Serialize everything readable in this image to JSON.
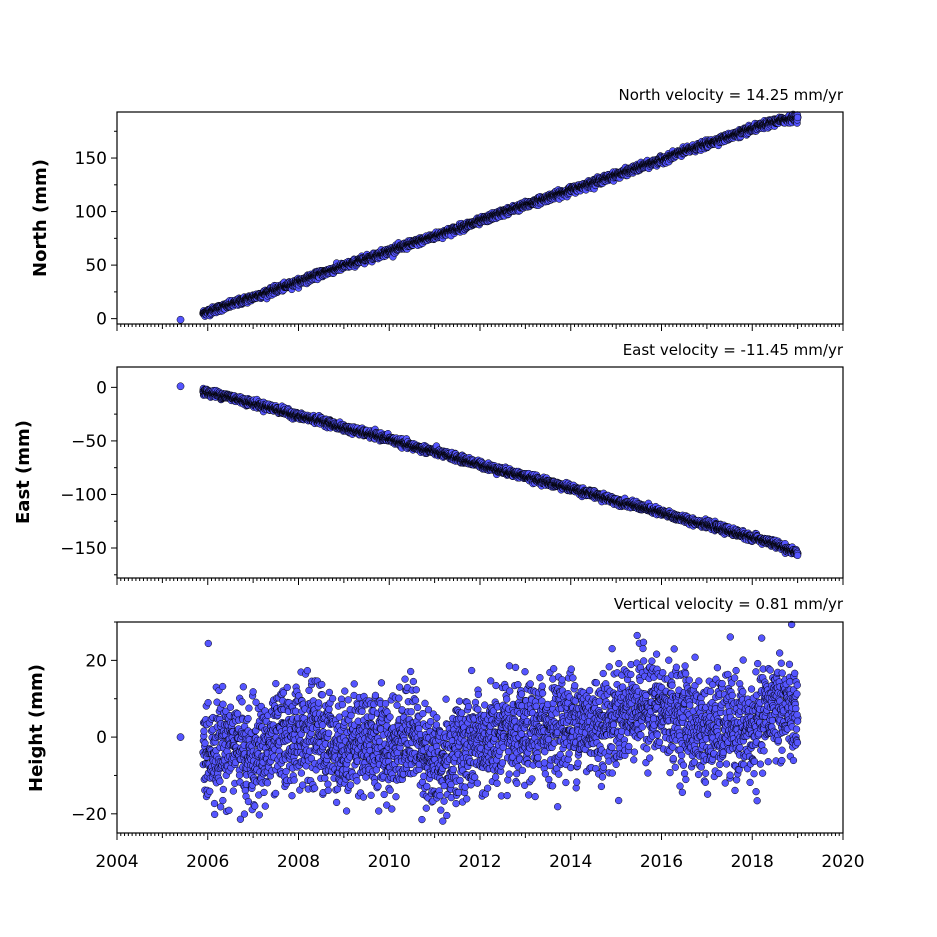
{
  "chart_data": [
    {
      "type": "scatter",
      "title": "North velocity = 14.25 mm/yr",
      "ylabel": "North (mm)",
      "xlim": [
        2004,
        2020
      ],
      "ylim": [
        -5,
        193
      ],
      "yticks": [
        0,
        50,
        100,
        150
      ],
      "ytick_labels": [
        "0",
        "50",
        "100",
        "150"
      ],
      "series": [
        {
          "x": [
            2005.4,
            2005.9,
            2006.5,
            2007.0,
            2007.5,
            2008.0,
            2008.5,
            2009.0,
            2009.5,
            2010.0,
            2010.5,
            2011.0,
            2011.5,
            2012.0,
            2012.5,
            2013.0,
            2013.5,
            2014.0,
            2014.5,
            2015.0,
            2015.5,
            2016.0,
            2016.5,
            2017.0,
            2017.5,
            2018.0,
            2018.5,
            2019.0
          ],
          "y": [
            -1,
            5,
            13,
            20,
            27,
            34,
            42,
            49,
            56,
            63,
            70,
            77,
            84,
            91,
            99,
            106,
            113,
            120,
            127,
            134,
            141,
            148,
            156,
            163,
            170,
            177,
            184,
            188
          ]
        }
      ]
    },
    {
      "type": "scatter",
      "title": "East velocity = -11.45 mm/yr",
      "ylabel": "East (mm)",
      "xlim": [
        2004,
        2020
      ],
      "ylim": [
        -178,
        19
      ],
      "yticks": [
        0,
        -50,
        -100,
        -150
      ],
      "ytick_labels": [
        "0",
        "−50",
        "−100",
        "−150"
      ],
      "series": [
        {
          "x": [
            2005.4,
            2005.9,
            2006.5,
            2007.0,
            2007.5,
            2008.0,
            2008.5,
            2009.0,
            2009.5,
            2010.0,
            2010.5,
            2011.0,
            2011.5,
            2012.0,
            2012.5,
            2013.0,
            2013.5,
            2014.0,
            2014.5,
            2015.0,
            2015.5,
            2016.0,
            2016.5,
            2017.0,
            2017.5,
            2018.0,
            2018.5,
            2019.0
          ],
          "y": [
            1,
            -4,
            -9,
            -15,
            -20,
            -27,
            -31,
            -38,
            -43,
            -48,
            -55,
            -60,
            -66,
            -72,
            -78,
            -83,
            -89,
            -94,
            -100,
            -106,
            -111,
            -117,
            -123,
            -128,
            -134,
            -140,
            -146,
            -155
          ]
        }
      ]
    },
    {
      "type": "scatter",
      "title": "Vertical velocity = 0.81 mm/yr",
      "ylabel": "Height (mm)",
      "xlabel": "",
      "xlim": [
        2004,
        2020
      ],
      "ylim": [
        -25,
        30
      ],
      "yticks": [
        20,
        0,
        -20
      ],
      "ytick_labels": [
        "20",
        "0",
        "−20"
      ],
      "series": [
        {
          "x": [
            2005.4,
            2005.9,
            2006.5,
            2007.0,
            2007.5,
            2008.0,
            2008.5,
            2009.0,
            2009.5,
            2010.0,
            2010.5,
            2011.0,
            2011.5,
            2012.0,
            2012.5,
            2013.0,
            2013.5,
            2014.0,
            2014.5,
            2015.0,
            2015.5,
            2016.0,
            2016.5,
            2017.0,
            2017.5,
            2018.0,
            2018.5,
            2019.0
          ],
          "y": [
            0,
            -4,
            -1,
            -6,
            -1,
            1,
            0,
            -3,
            0,
            -3,
            2,
            -8,
            -3,
            -2,
            0,
            0,
            3,
            4,
            3,
            5,
            9,
            7,
            5,
            1,
            3,
            1,
            9,
            5
          ]
        }
      ]
    }
  ],
  "xticks": [
    2004,
    2006,
    2008,
    2010,
    2012,
    2014,
    2016,
    2018,
    2020
  ],
  "xtick_labels": [
    "2004",
    "2006",
    "2008",
    "2010",
    "2012",
    "2014",
    "2016",
    "2018",
    "2020"
  ],
  "marker_color": "#5555ff"
}
